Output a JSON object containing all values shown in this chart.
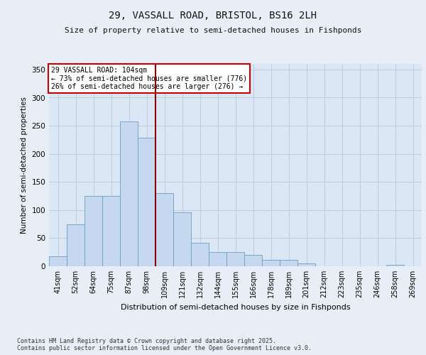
{
  "title_line1": "29, VASSALL ROAD, BRISTOL, BS16 2LH",
  "title_line2": "Size of property relative to semi-detached houses in Fishponds",
  "xlabel": "Distribution of semi-detached houses by size in Fishponds",
  "ylabel": "Number of semi-detached properties",
  "categories": [
    "41sqm",
    "52sqm",
    "64sqm",
    "75sqm",
    "87sqm",
    "98sqm",
    "109sqm",
    "121sqm",
    "132sqm",
    "144sqm",
    "155sqm",
    "166sqm",
    "178sqm",
    "189sqm",
    "201sqm",
    "212sqm",
    "223sqm",
    "235sqm",
    "246sqm",
    "258sqm",
    "269sqm"
  ],
  "values": [
    18,
    75,
    125,
    125,
    258,
    228,
    130,
    96,
    42,
    25,
    25,
    20,
    12,
    12,
    5,
    0,
    0,
    0,
    0,
    3,
    0
  ],
  "bar_color": "#c5d8ef",
  "bar_edge_color": "#6a9fc0",
  "vline_color": "#8b0000",
  "annotation_title": "29 VASSALL ROAD: 104sqm",
  "annotation_line2": "← 73% of semi-detached houses are smaller (776)",
  "annotation_line3": "26% of semi-detached houses are larger (276) →",
  "annotation_box_color": "#cc0000",
  "ylim": [
    0,
    360
  ],
  "yticks": [
    0,
    50,
    100,
    150,
    200,
    250,
    300,
    350
  ],
  "footnote": "Contains HM Land Registry data © Crown copyright and database right 2025.\nContains public sector information licensed under the Open Government Licence v3.0.",
  "bg_color": "#e8eef7",
  "plot_bg_color": "#dce7f5",
  "grid_color": "#c0cfe0"
}
